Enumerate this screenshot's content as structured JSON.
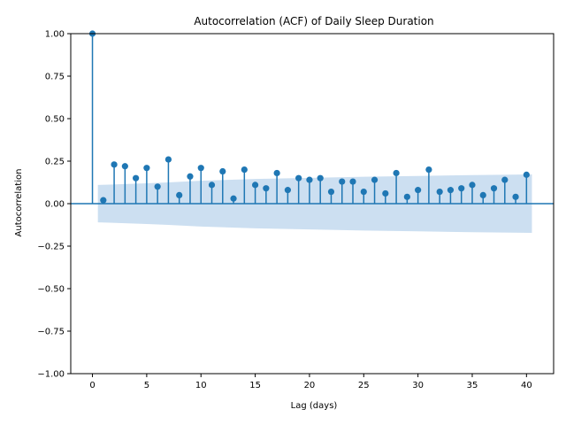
{
  "chart_data": {
    "type": "scatter",
    "title": "Autocorrelation (ACF) of Daily Sleep Duration",
    "xlabel": "Lag (days)",
    "ylabel": "Autocorrelation",
    "xlim": [
      -2,
      42.5
    ],
    "ylim": [
      -1.0,
      1.0
    ],
    "x_ticks": [
      0,
      5,
      10,
      15,
      20,
      25,
      30,
      35,
      40
    ],
    "y_ticks": [
      -1.0,
      -0.75,
      -0.5,
      -0.25,
      0.0,
      0.25,
      0.5,
      0.75,
      1.0
    ],
    "x_tick_labels": [
      "0",
      "5",
      "10",
      "15",
      "20",
      "25",
      "30",
      "35",
      "40"
    ],
    "y_tick_labels": [
      "−1.00",
      "−0.75",
      "−0.50",
      "−0.25",
      "0.00",
      "0.25",
      "0.50",
      "0.75",
      "1.00"
    ],
    "grid": false,
    "lags": [
      0,
      1,
      2,
      3,
      4,
      5,
      6,
      7,
      8,
      9,
      10,
      11,
      12,
      13,
      14,
      15,
      16,
      17,
      18,
      19,
      20,
      21,
      22,
      23,
      24,
      25,
      26,
      27,
      28,
      29,
      30,
      31,
      32,
      33,
      34,
      35,
      36,
      37,
      38,
      39,
      40
    ],
    "values": [
      1.0,
      0.02,
      0.23,
      0.22,
      0.15,
      0.21,
      0.1,
      0.26,
      0.05,
      0.16,
      0.21,
      0.11,
      0.19,
      0.03,
      0.2,
      0.11,
      0.09,
      0.18,
      0.08,
      0.15,
      0.14,
      0.15,
      0.07,
      0.13,
      0.13,
      0.07,
      0.14,
      0.06,
      0.18,
      0.04,
      0.08,
      0.2,
      0.07,
      0.08,
      0.09,
      0.11,
      0.05,
      0.09,
      0.14,
      0.04,
      0.17
    ],
    "confidence_band": {
      "lags": [
        0.5,
        3,
        5,
        7,
        10,
        15,
        20,
        25,
        30,
        35,
        40.5
      ],
      "upper": [
        0.11,
        0.115,
        0.12,
        0.125,
        0.135,
        0.145,
        0.152,
        0.158,
        0.163,
        0.168,
        0.172
      ],
      "lower": [
        -0.11,
        -0.115,
        -0.12,
        -0.125,
        -0.135,
        -0.145,
        -0.152,
        -0.158,
        -0.163,
        -0.168,
        -0.172
      ]
    },
    "colors": {
      "stem": "#1f77b4",
      "band": "#c6dbef",
      "axis": "#000000"
    }
  }
}
